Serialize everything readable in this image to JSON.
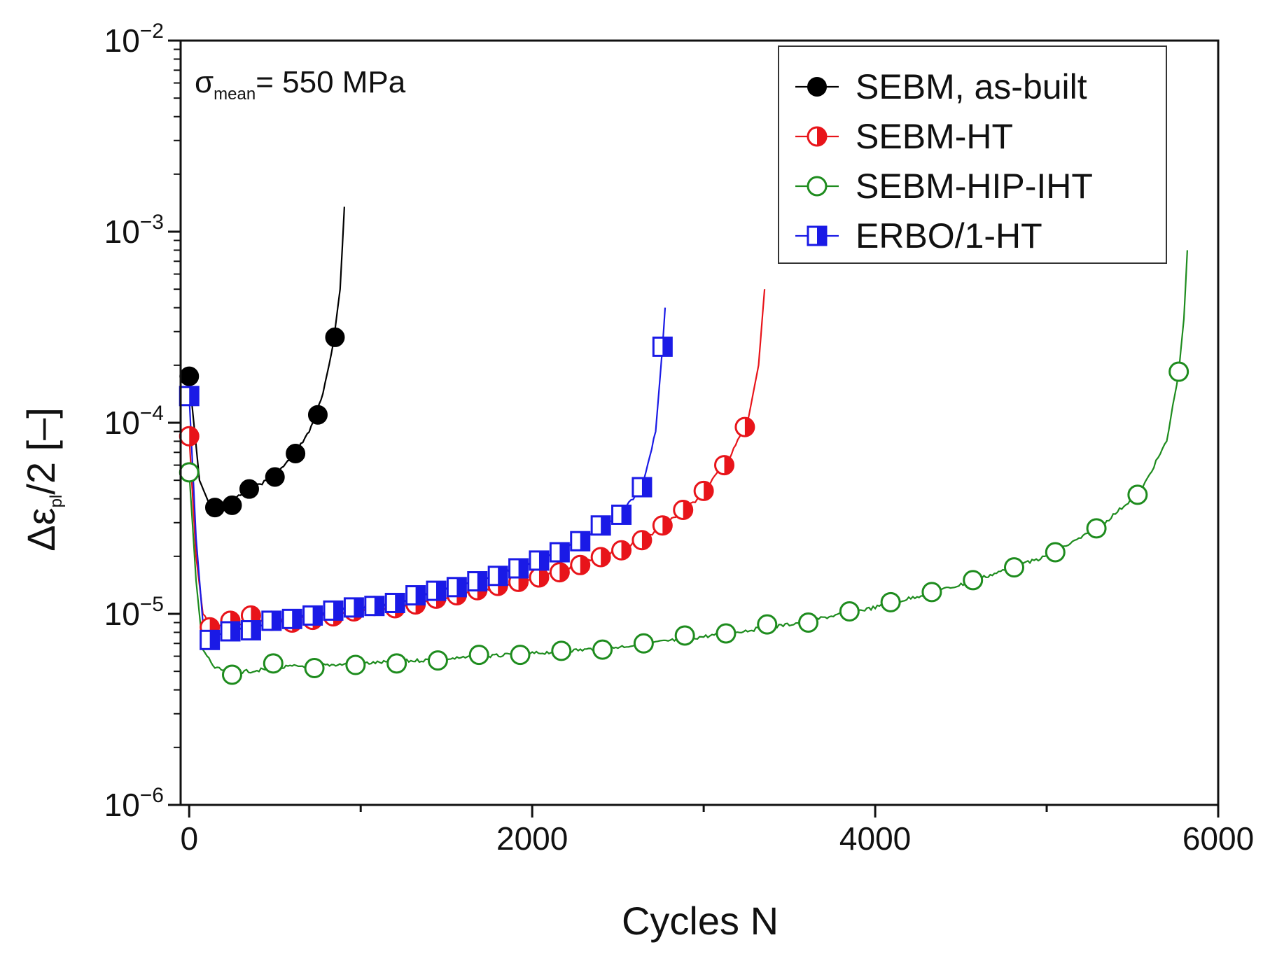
{
  "chart_data": {
    "type": "line",
    "title": "",
    "annotation": {
      "symbol": "σ",
      "subscript": "mean",
      "text": "= 550 MPa"
    },
    "xlabel": "Cycles N",
    "ylabel": {
      "prefix": "Δε",
      "subscript": "pl",
      "suffix": "/2 [–]"
    },
    "xlim": [
      -50,
      6000
    ],
    "ylim": [
      1e-06,
      0.01
    ],
    "yscale": "log",
    "x_ticks": [
      0,
      2000,
      4000,
      6000
    ],
    "x_tick_labels": [
      "0",
      "2000",
      "4000",
      "6000"
    ],
    "y_ticks": [
      1e-06,
      1e-05,
      0.0001,
      0.001,
      0.01
    ],
    "y_tick_labels": [
      {
        "base": "10",
        "exp": "−6"
      },
      {
        "base": "10",
        "exp": "−5"
      },
      {
        "base": "10",
        "exp": "−4"
      },
      {
        "base": "10",
        "exp": "−3"
      },
      {
        "base": "10",
        "exp": "−2"
      }
    ],
    "legend_position": "top-right",
    "series": [
      {
        "name": "SEBM, as-built",
        "color": "#000000",
        "marker": "filled-circle",
        "markers": [
          [
            0,
            0.000175
          ],
          [
            150,
            3.6e-05
          ],
          [
            250,
            3.7e-05
          ],
          [
            350,
            4.5e-05
          ],
          [
            500,
            5.2e-05
          ],
          [
            620,
            6.9e-05
          ],
          [
            750,
            0.00011
          ],
          [
            850,
            0.00028
          ]
        ],
        "curve": [
          [
            0,
            0.000175
          ],
          [
            60,
            5e-05
          ],
          [
            120,
            3.7e-05
          ],
          [
            200,
            3.7e-05
          ],
          [
            300,
            4.2e-05
          ],
          [
            400,
            4.7e-05
          ],
          [
            500,
            5.3e-05
          ],
          [
            600,
            6.6e-05
          ],
          [
            700,
            9e-05
          ],
          [
            780,
            0.00014
          ],
          [
            840,
            0.00026
          ],
          [
            880,
            0.0005
          ],
          [
            905,
            0.00135
          ]
        ]
      },
      {
        "name": "SEBM-HT",
        "color": "#e8141a",
        "marker": "half-circle",
        "markers": [
          [
            0,
            8.5e-05
          ],
          [
            120,
            8.5e-06
          ],
          [
            240,
            9.2e-06
          ],
          [
            360,
            9.8e-06
          ],
          [
            480,
            9.2e-06
          ],
          [
            600,
            9e-06
          ],
          [
            720,
            9.3e-06
          ],
          [
            840,
            9.7e-06
          ],
          [
            960,
            1.03e-05
          ],
          [
            1080,
            1.1e-05
          ],
          [
            1200,
            1.07e-05
          ],
          [
            1320,
            1.12e-05
          ],
          [
            1440,
            1.2e-05
          ],
          [
            1560,
            1.25e-05
          ],
          [
            1680,
            1.33e-05
          ],
          [
            1800,
            1.4e-05
          ],
          [
            1920,
            1.47e-05
          ],
          [
            2040,
            1.55e-05
          ],
          [
            2160,
            1.65e-05
          ],
          [
            2280,
            1.8e-05
          ],
          [
            2400,
            1.98e-05
          ],
          [
            2520,
            2.15e-05
          ],
          [
            2640,
            2.43e-05
          ],
          [
            2760,
            2.9e-05
          ],
          [
            2880,
            3.5e-05
          ],
          [
            3000,
            4.4e-05
          ],
          [
            3120,
            6e-05
          ],
          [
            3240,
            9.5e-05
          ]
        ],
        "curve": [
          [
            0,
            8.5e-05
          ],
          [
            40,
            2e-05
          ],
          [
            80,
            1e-05
          ],
          [
            150,
            8.6e-06
          ],
          [
            400,
            9.2e-06
          ],
          [
            800,
            9.8e-06
          ],
          [
            1200,
            1.08e-05
          ],
          [
            1600,
            1.28e-05
          ],
          [
            2000,
            1.52e-05
          ],
          [
            2400,
            1.98e-05
          ],
          [
            2700,
            2.6e-05
          ],
          [
            2950,
            3.9e-05
          ],
          [
            3150,
            6.5e-05
          ],
          [
            3260,
            0.000105
          ],
          [
            3320,
            0.0002
          ],
          [
            3355,
            0.0005
          ]
        ]
      },
      {
        "name": "SEBM-HIP-IHT",
        "color": "#1e8c1e",
        "marker": "open-circle",
        "markers": [
          [
            0,
            5.5e-05
          ],
          [
            250,
            4.8e-06
          ],
          [
            490,
            5.5e-06
          ],
          [
            730,
            5.2e-06
          ],
          [
            970,
            5.4e-06
          ],
          [
            1210,
            5.5e-06
          ],
          [
            1450,
            5.7e-06
          ],
          [
            1690,
            6.1e-06
          ],
          [
            1930,
            6.1e-06
          ],
          [
            2170,
            6.4e-06
          ],
          [
            2410,
            6.5e-06
          ],
          [
            2650,
            7e-06
          ],
          [
            2890,
            7.7e-06
          ],
          [
            3130,
            7.9e-06
          ],
          [
            3370,
            8.8e-06
          ],
          [
            3610,
            9e-06
          ],
          [
            3850,
            1.03e-05
          ],
          [
            4090,
            1.15e-05
          ],
          [
            4330,
            1.3e-05
          ],
          [
            4570,
            1.5e-05
          ],
          [
            4810,
            1.75e-05
          ],
          [
            5050,
            2.1e-05
          ],
          [
            5290,
            2.8e-05
          ],
          [
            5530,
            4.2e-05
          ],
          [
            5770,
            0.000185
          ]
        ],
        "curve": [
          [
            0,
            5.5e-05
          ],
          [
            40,
            1.5e-05
          ],
          [
            80,
            6.5e-06
          ],
          [
            150,
            5.2e-06
          ],
          [
            250,
            4.9e-06
          ],
          [
            600,
            5.3e-06
          ],
          [
            1000,
            5.5e-06
          ],
          [
            1500,
            5.8e-06
          ],
          [
            2000,
            6.2e-06
          ],
          [
            2500,
            6.7e-06
          ],
          [
            3000,
            7.6e-06
          ],
          [
            3500,
            8.8e-06
          ],
          [
            4000,
            1.08e-05
          ],
          [
            4500,
            1.42e-05
          ],
          [
            5000,
            2e-05
          ],
          [
            5300,
            2.8e-05
          ],
          [
            5550,
            4.4e-05
          ],
          [
            5700,
            8e-05
          ],
          [
            5770,
            0.000185
          ],
          [
            5800,
            0.00035
          ],
          [
            5820,
            0.0008
          ]
        ]
      },
      {
        "name": "ERBO/1-HT",
        "color": "#1a1ae6",
        "marker": "half-square",
        "markers": [
          [
            0,
            0.000138
          ],
          [
            120,
            7.3e-06
          ],
          [
            240,
            8.1e-06
          ],
          [
            360,
            8.2e-06
          ],
          [
            480,
            9.2e-06
          ],
          [
            600,
            9.4e-06
          ],
          [
            720,
            9.8e-06
          ],
          [
            840,
            1.04e-05
          ],
          [
            960,
            1.08e-05
          ],
          [
            1080,
            1.1e-05
          ],
          [
            1200,
            1.14e-05
          ],
          [
            1320,
            1.25e-05
          ],
          [
            1440,
            1.32e-05
          ],
          [
            1560,
            1.38e-05
          ],
          [
            1680,
            1.48e-05
          ],
          [
            1800,
            1.58e-05
          ],
          [
            1920,
            1.73e-05
          ],
          [
            2040,
            1.9e-05
          ],
          [
            2160,
            2.1e-05
          ],
          [
            2280,
            2.4e-05
          ],
          [
            2400,
            2.9e-05
          ],
          [
            2520,
            3.3e-05
          ],
          [
            2640,
            4.6e-05
          ],
          [
            2760,
            0.00025
          ]
        ],
        "curve": [
          [
            0,
            0.000138
          ],
          [
            40,
            2.5e-05
          ],
          [
            80,
            9e-06
          ],
          [
            150,
            7.6e-06
          ],
          [
            400,
            8.7e-06
          ],
          [
            800,
            1.02e-05
          ],
          [
            1200,
            1.15e-05
          ],
          [
            1600,
            1.4e-05
          ],
          [
            2000,
            1.85e-05
          ],
          [
            2300,
            2.5e-05
          ],
          [
            2500,
            3.2e-05
          ],
          [
            2640,
            4.6e-05
          ],
          [
            2720,
            9e-05
          ],
          [
            2760,
            0.00025
          ],
          [
            2775,
            0.0004
          ]
        ]
      }
    ]
  }
}
